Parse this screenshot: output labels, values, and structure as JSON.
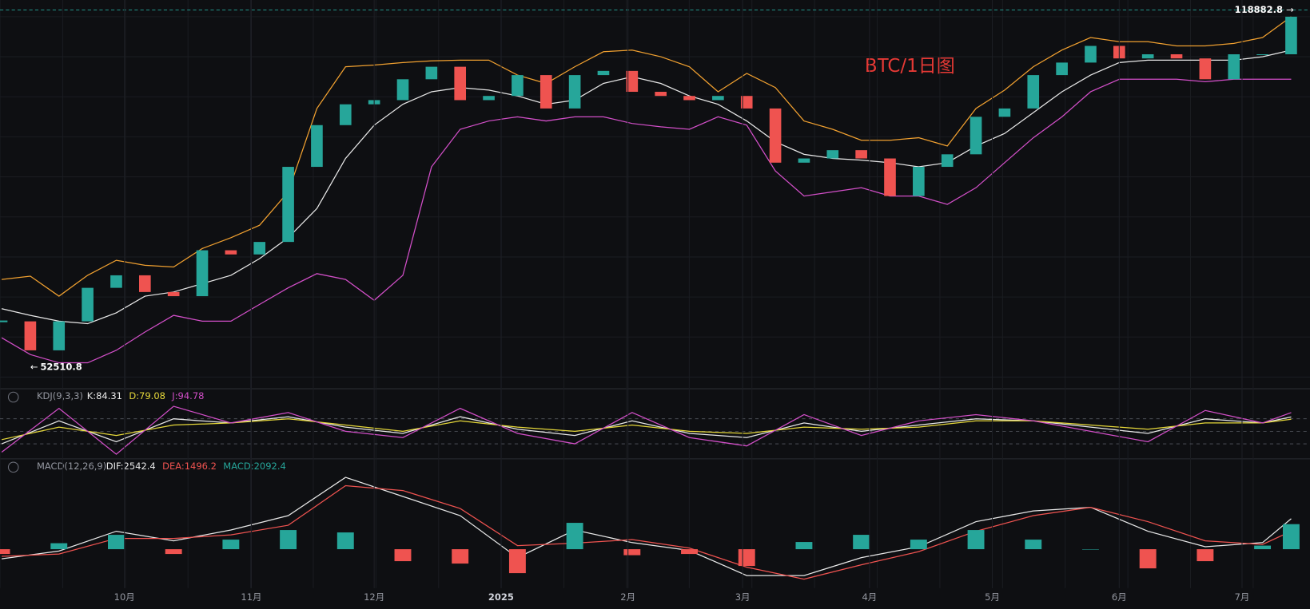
{
  "chart_data": [
    {
      "type": "candlestick",
      "title": "BTC/1日图",
      "x": [
        0,
        7,
        14,
        21,
        28,
        35,
        42,
        49,
        56,
        63,
        70,
        77,
        84,
        91,
        98,
        105,
        112,
        119,
        126,
        133,
        140,
        147,
        154,
        161,
        168,
        175,
        182,
        189,
        196,
        203,
        210,
        217,
        224,
        231,
        238,
        245,
        252,
        259,
        266,
        273,
        280,
        287,
        294,
        301,
        308,
        315
      ],
      "xlim": [
        -0.4,
        319.6
      ],
      "ylim": [
        50350,
        121640
      ],
      "log_scale": true,
      "close": [
        58300,
        54560,
        58300,
        62950,
        64780,
        62350,
        61760,
        68600,
        67950,
        69920,
        83030,
        91350,
        95810,
        96730,
        101460,
        104410,
        96730,
        97660,
        102430,
        94900,
        102430,
        103420,
        98590,
        97660,
        96730,
        97660,
        94900,
        83830,
        84640,
        86260,
        84640,
        77670,
        83030,
        85450,
        93110,
        94900,
        102430,
        105410,
        109510,
        106420,
        107430,
        106420,
        101460,
        107430,
        107430,
        117080
      ],
      "up_color": "#26a69a",
      "down_color": "#ef5350",
      "bands": [
        {
          "color": "#f0a030",
          "values": [
            64170,
            64660,
            61760,
            64780,
            67040,
            66280,
            66030,
            68870,
            70600,
            72640,
            78410,
            94900,
            104410,
            104810,
            105410,
            105810,
            106000,
            106000,
            102430,
            100500,
            104410,
            108060,
            108470,
            106820,
            104410,
            98590,
            102830,
            99540,
            92220,
            90480,
            88250,
            88250,
            88760,
            87090,
            94900,
            98970,
            104410,
            108470,
            111620,
            110560,
            110560,
            109510,
            109510,
            110140,
            111620,
            117080
          ]
        },
        {
          "color": "#e8e8e8",
          "values": [
            60020,
            59110,
            58320,
            57990,
            59450,
            61760,
            62350,
            63560,
            64780,
            67300,
            70600,
            75470,
            84640,
            91350,
            95810,
            98590,
            99540,
            98970,
            97660,
            95810,
            96730,
            100500,
            102040,
            100500,
            97660,
            95810,
            92220,
            87920,
            85450,
            84640,
            84320,
            83830,
            83030,
            83830,
            87090,
            89620,
            94000,
            98590,
            102430,
            105410,
            106000,
            106000,
            106000,
            106000,
            106820,
            108470
          ]
        },
        {
          "color": "#d24fc8",
          "values": [
            56150,
            54040,
            53020,
            53020,
            54560,
            56890,
            59110,
            58320,
            58320,
            60600,
            62950,
            65030,
            64170,
            61180,
            64780,
            83030,
            90480,
            92220,
            93110,
            92220,
            93110,
            93110,
            91690,
            91000,
            90480,
            93110,
            91350,
            82240,
            77670,
            78410,
            79160,
            77670,
            77670,
            76200,
            79160,
            83830,
            88760,
            93110,
            98590,
            101460,
            101460,
            101460,
            100880,
            101460,
            101460,
            101460
          ]
        }
      ],
      "high_marker": 118882.8,
      "high_marker_x": 315,
      "low_marker": 52510.8,
      "low_marker_x": 7
    },
    {
      "type": "line",
      "title": "KDJ(9,3,3)",
      "x": [
        0,
        14,
        28,
        42,
        56,
        70,
        84,
        98,
        112,
        126,
        140,
        154,
        168,
        182,
        196,
        210,
        224,
        238,
        252,
        266,
        280,
        294,
        308,
        315
      ],
      "xlim": [
        -0.4,
        319.6
      ],
      "ylim": [
        -20,
        120
      ],
      "yticks": [
        20,
        50,
        80
      ],
      "series": [
        {
          "name": "K:84.31",
          "color": "#e8e8e8",
          "values": [
            20,
            75,
            25,
            80,
            70,
            85,
            60,
            45,
            85,
            55,
            40,
            75,
            45,
            35,
            70,
            50,
            65,
            80,
            75,
            60,
            45,
            80,
            70,
            84.31
          ]
        },
        {
          "name": "D:79.08",
          "color": "#e6d83a",
          "values": [
            30,
            60,
            40,
            65,
            70,
            80,
            65,
            50,
            75,
            60,
            50,
            65,
            50,
            45,
            60,
            55,
            60,
            75,
            75,
            65,
            55,
            70,
            70,
            79.08
          ]
        },
        {
          "name": "J:94.78",
          "color": "#d24fc8",
          "values": [
            0,
            105,
            -5,
            110,
            70,
            95,
            50,
            35,
            105,
            45,
            20,
            95,
            35,
            15,
            90,
            40,
            75,
            90,
            75,
            50,
            25,
            100,
            70,
            94.78
          ]
        }
      ]
    },
    {
      "type": "macd",
      "title": "MACD(12,26,9)",
      "x": [
        0,
        14,
        28,
        42,
        56,
        70,
        84,
        98,
        112,
        126,
        140,
        154,
        168,
        182,
        196,
        210,
        224,
        238,
        252,
        266,
        280,
        294,
        308,
        315
      ],
      "xlim": [
        -0.4,
        319.6
      ],
      "ylim": [
        -3600,
        6500
      ],
      "xticks": [
        {
          "value": 30,
          "label": "10月"
        },
        {
          "value": 61,
          "label": "11月"
        },
        {
          "value": 91,
          "label": "12月"
        },
        {
          "value": 122,
          "label": "2025"
        },
        {
          "value": 153,
          "label": "2月"
        },
        {
          "value": 181,
          "label": "3月"
        },
        {
          "value": 212,
          "label": "4月"
        },
        {
          "value": 242,
          "label": "5月"
        },
        {
          "value": 273,
          "label": "6月"
        },
        {
          "value": 303,
          "label": "7月"
        }
      ],
      "series": [
        {
          "name": "DIF:2542.4",
          "color": "#e8e8e8",
          "values": [
            -800,
            -150,
            1500,
            700,
            1600,
            2800,
            6000,
            4400,
            2800,
            -700,
            1600,
            550,
            -100,
            -2200,
            -2200,
            -700,
            200,
            2300,
            3200,
            3500,
            1500,
            200,
            550,
            2542.4
          ]
        },
        {
          "name": "DEA:1496.2",
          "color": "#ef5350",
          "values": [
            -600,
            -400,
            900,
            900,
            1200,
            2000,
            5300,
            4900,
            3400,
            300,
            500,
            800,
            100,
            -1500,
            -2500,
            -1300,
            -200,
            1500,
            2800,
            3500,
            2300,
            700,
            400,
            1496.2
          ]
        },
        {
          "name": "MACD:2092.4",
          "type": "bar",
          "color": "#26a69a",
          "negative_color": "#ef5350",
          "values": [
            -400,
            500,
            1200,
            -400,
            800,
            1600,
            1400,
            -1000,
            -1200,
            -2000,
            2200,
            -500,
            -400,
            -1400,
            600,
            1200,
            800,
            1600,
            800,
            0,
            -1600,
            -1000,
            300,
            2092.4
          ]
        }
      ]
    }
  ]
}
